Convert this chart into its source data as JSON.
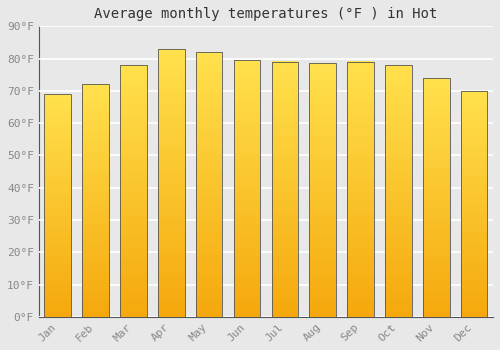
{
  "title": "Average monthly temperatures (°F ) in Hot",
  "months": [
    "Jan",
    "Feb",
    "Mar",
    "Apr",
    "May",
    "Jun",
    "Jul",
    "Aug",
    "Sep",
    "Oct",
    "Nov",
    "Dec"
  ],
  "values": [
    69,
    72,
    78,
    83,
    82,
    79.5,
    79,
    78.5,
    79,
    78,
    74,
    70
  ],
  "bar_color_bottom": "#F5A800",
  "bar_color_top": "#FFE066",
  "bar_edge_color": "#555555",
  "background_color": "#e8e8e8",
  "plot_bg_color": "#e8e8e8",
  "ylim": [
    0,
    90
  ],
  "yticks": [
    0,
    10,
    20,
    30,
    40,
    50,
    60,
    70,
    80,
    90
  ],
  "ytick_labels": [
    "0°F",
    "10°F",
    "20°F",
    "30°F",
    "40°F",
    "50°F",
    "60°F",
    "70°F",
    "80°F",
    "90°F"
  ],
  "title_fontsize": 10,
  "tick_fontsize": 8,
  "grid_color": "#ffffff",
  "bar_width": 0.7,
  "gap_color": "#cccccc"
}
